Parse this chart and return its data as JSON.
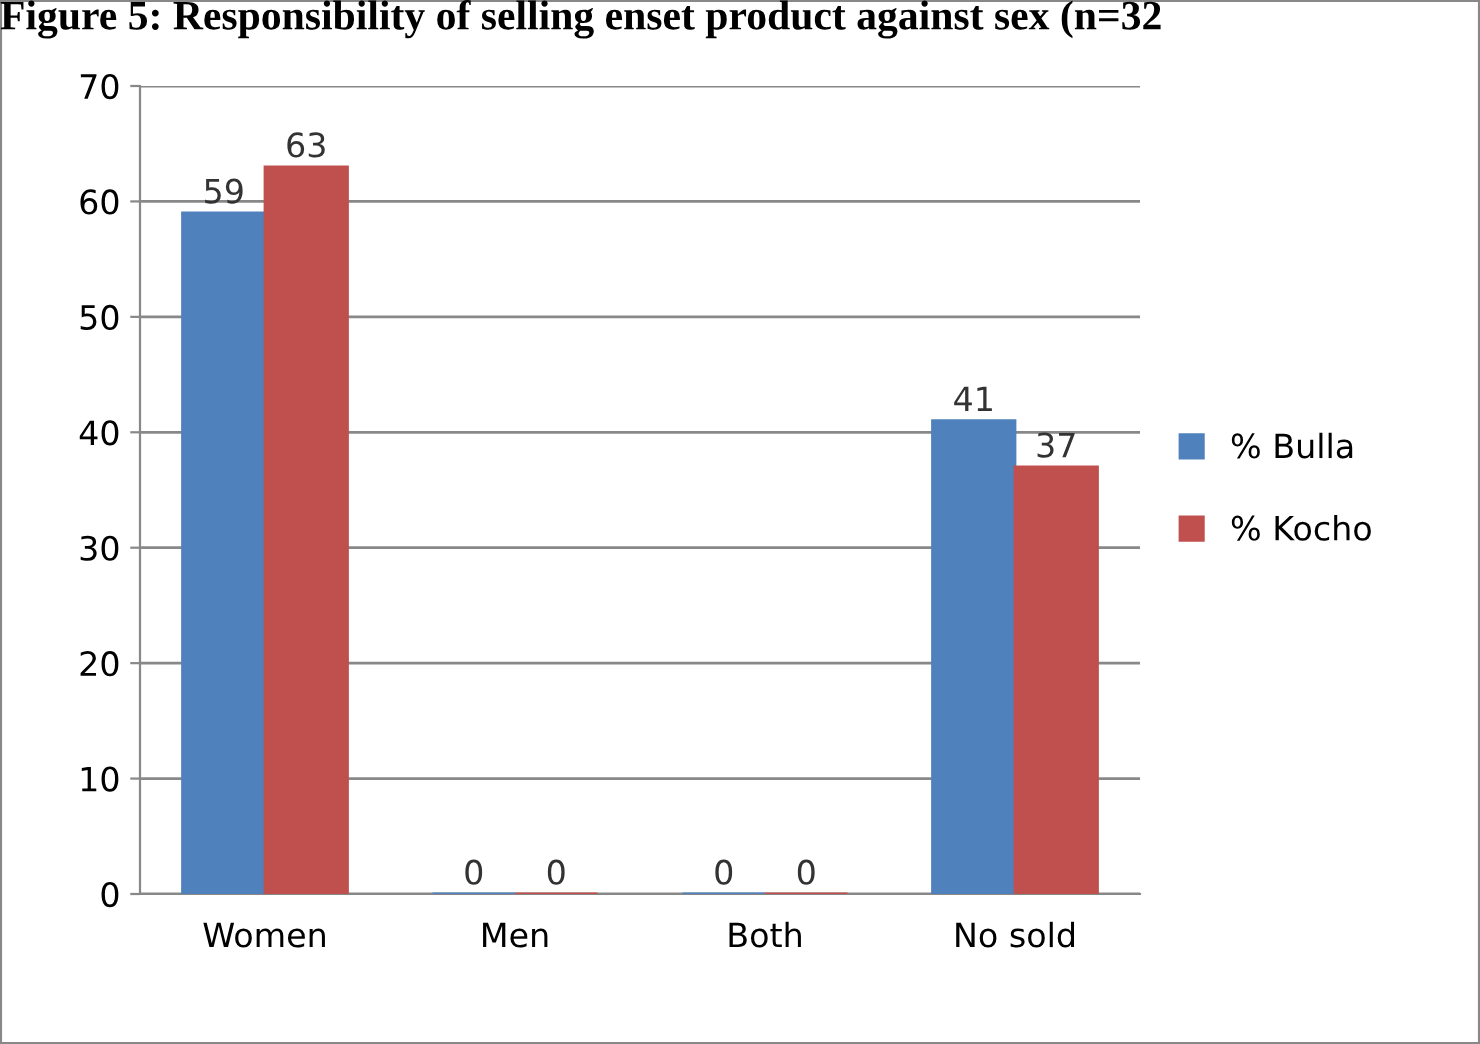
{
  "chart_data": {
    "type": "bar",
    "title": "Figure 5: Responsibility of selling enset product against sex (n=32",
    "categories": [
      "Women",
      "Men",
      "Both",
      "No sold"
    ],
    "series": [
      {
        "name": "% Bulla",
        "color": "#4f81bd",
        "values": [
          59,
          0,
          0,
          41
        ]
      },
      {
        "name": "% Kocho",
        "color": "#c0504d",
        "values": [
          63,
          0,
          0,
          37
        ]
      }
    ],
    "ylim": [
      0,
      70
    ],
    "yticks": [
      0,
      10,
      20,
      30,
      40,
      50,
      60,
      70
    ],
    "grid": "y",
    "legend": "right",
    "data_labels": true
  }
}
